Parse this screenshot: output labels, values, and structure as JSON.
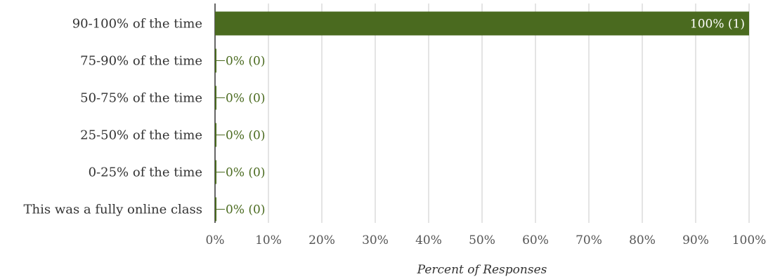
{
  "chart_data": {
    "type": "bar",
    "orientation": "horizontal",
    "categories": [
      "90-100% of the time",
      "75-90% of the time",
      "50-75% of the time",
      "25-50% of the time",
      "0-25% of the time",
      "This was a fully online class"
    ],
    "values": [
      100,
      0,
      0,
      0,
      0,
      0
    ],
    "data_labels": [
      "100% (1)",
      "0% (0)",
      "0% (0)",
      "0% (0)",
      "0% (0)",
      "0% (0)"
    ],
    "xlabel": "Percent of Responses",
    "ylabel": "",
    "xlim": [
      0,
      100
    ],
    "xticks": [
      "0%",
      "10%",
      "20%",
      "30%",
      "40%",
      "50%",
      "60%",
      "70%",
      "80%",
      "90%",
      "100%"
    ],
    "grid": true,
    "colors": {
      "bar": "#4a6a1f",
      "label_inside": "#ffffff",
      "label_outside": "#4a6a1f",
      "grid": "#c8c8c8",
      "axis": "#333333"
    }
  }
}
